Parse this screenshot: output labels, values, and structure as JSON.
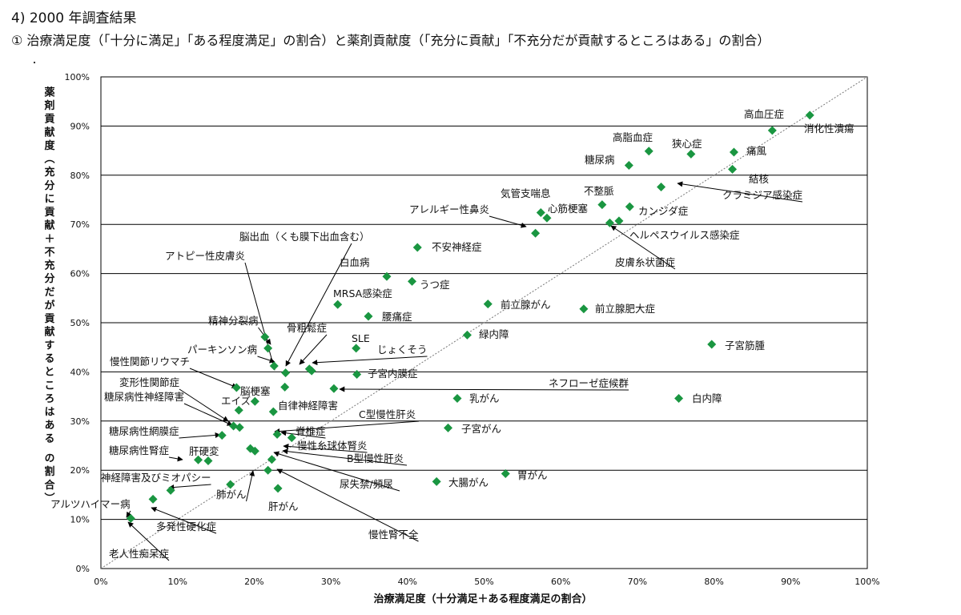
{
  "heading": "4) 2000 年調査結果",
  "subheading": "① 治療満足度（「十分に満足」「ある程度満足」の割合）と薬剤貢献度（「充分に貢献」「不充分だが貢献するところはある」の割合）",
  "stray_mark": "・",
  "chart_data": {
    "type": "scatter",
    "xlabel": "治療満足度（十分満足＋ある程度満足の割合）",
    "ylabel": "薬剤貢献度（充分に貢献＋不充分だが貢献するところはある の割合）",
    "xlim": [
      0,
      100
    ],
    "ylim": [
      0,
      100
    ],
    "x_ticks": [
      "0%",
      "10%",
      "20%",
      "30%",
      "40%",
      "50%",
      "60%",
      "70%",
      "80%",
      "90%",
      "100%"
    ],
    "y_ticks": [
      "0%",
      "10%",
      "20%",
      "30%",
      "40%",
      "50%",
      "60%",
      "70%",
      "80%",
      "90%",
      "100%"
    ],
    "grid": "horizontal",
    "diagonal_reference_line": true,
    "marker_color": "#1a9641",
    "points": [
      {
        "label": "高血圧症",
        "x": 92.5,
        "y": 92.2
      },
      {
        "label": "消化性潰瘍",
        "x": 87.6,
        "y": 89.1
      },
      {
        "label": "高脂血症",
        "x": 71.5,
        "y": 84.9
      },
      {
        "label": "狭心症",
        "x": 77.0,
        "y": 84.3
      },
      {
        "label": "痛風",
        "x": 82.6,
        "y": 84.7
      },
      {
        "label": "糖尿病",
        "x": 68.9,
        "y": 82.0
      },
      {
        "label": "結核",
        "x": 82.4,
        "y": 81.2
      },
      {
        "label": "クラミジア感染症",
        "x": 73.1,
        "y": 77.6
      },
      {
        "label": "気管支喘息",
        "x": 57.4,
        "y": 72.4
      },
      {
        "label": "心筋梗塞",
        "x": 58.2,
        "y": 71.3
      },
      {
        "label": "不整脈",
        "x": 65.4,
        "y": 74.0
      },
      {
        "label": "カンジダ症",
        "x": 69.0,
        "y": 73.6
      },
      {
        "label": "アレルギー性鼻炎",
        "x": 56.7,
        "y": 68.2
      },
      {
        "label": "ヘルペスウイルス感染症",
        "x": 66.4,
        "y": 70.3
      },
      {
        "label": "皮膚糸状菌症",
        "x": 67.6,
        "y": 70.7
      },
      {
        "label": "不安神経症",
        "x": 41.3,
        "y": 65.3
      },
      {
        "label": "白血病",
        "x": 37.3,
        "y": 59.4
      },
      {
        "label": "うつ症",
        "x": 40.6,
        "y": 58.4
      },
      {
        "label": "MRSA感染症",
        "x": 30.9,
        "y": 53.7
      },
      {
        "label": "腰痛症",
        "x": 34.9,
        "y": 51.3
      },
      {
        "label": "前立腺がん",
        "x": 50.5,
        "y": 53.8
      },
      {
        "label": "前立腺肥大症",
        "x": 63.0,
        "y": 52.8
      },
      {
        "label": "緑内障",
        "x": 47.8,
        "y": 47.5
      },
      {
        "label": "子宮筋腫",
        "x": 79.7,
        "y": 45.6
      },
      {
        "label": "精神分裂病",
        "x": 21.4,
        "y": 47.1
      },
      {
        "label": "骨粗鬆症",
        "x": 21.8,
        "y": 44.8
      },
      {
        "label": "SLE",
        "x": 33.3,
        "y": 44.8
      },
      {
        "label": "パーキンソン病",
        "x": 22.6,
        "y": 41.2
      },
      {
        "label": "じょくそう",
        "x": 27.2,
        "y": 40.6
      },
      {
        "label": "アトピー性皮膚炎",
        "x": 24.1,
        "y": 39.8
      },
      {
        "label": "脳出血（くも膜下出血含む）",
        "x": 27.5,
        "y": 40.2
      },
      {
        "label": "子宮内膜症",
        "x": 33.4,
        "y": 39.5
      },
      {
        "label": "慢性関節リウマチ",
        "x": 17.7,
        "y": 36.8
      },
      {
        "label": "ネフローゼ症候群",
        "x": 30.4,
        "y": 36.6
      },
      {
        "label": "自律神経障害",
        "x": 24.0,
        "y": 36.9
      },
      {
        "label": "乳がん",
        "x": 46.5,
        "y": 34.6
      },
      {
        "label": "白内障",
        "x": 75.4,
        "y": 34.6
      },
      {
        "label": "脳梗塞",
        "x": 20.1,
        "y": 34.0
      },
      {
        "label": "エイズ",
        "x": 18.0,
        "y": 32.2
      },
      {
        "label": "変形性関節症",
        "x": 22.5,
        "y": 31.9
      },
      {
        "label": "糖尿病性神経障害",
        "x": 17.3,
        "y": 29.0
      },
      {
        "label": "C型慢性肝炎",
        "x": 18.1,
        "y": 28.7
      },
      {
        "label": "子宮がん",
        "x": 45.3,
        "y": 28.6
      },
      {
        "label": "糖尿病性網膜症",
        "x": 15.8,
        "y": 27.1
      },
      {
        "label": "脊椎症",
        "x": 23.0,
        "y": 27.3
      },
      {
        "label": "慢性糸球体腎炎",
        "x": 24.9,
        "y": 26.6
      },
      {
        "label": "B型慢性肝炎",
        "x": 19.5,
        "y": 24.4
      },
      {
        "label": "尿失禁/頻尿",
        "x": 20.1,
        "y": 23.9
      },
      {
        "label": "糖尿病性腎症",
        "x": 12.7,
        "y": 22.1
      },
      {
        "label": "肝硬変",
        "x": 14.0,
        "y": 21.9
      },
      {
        "label": "慢性腎不全",
        "x": 22.3,
        "y": 22.2
      },
      {
        "label": "肺がん",
        "x": 21.8,
        "y": 20.0
      },
      {
        "label": "胃がん",
        "x": 52.8,
        "y": 19.3
      },
      {
        "label": "大腸がん",
        "x": 43.8,
        "y": 17.7
      },
      {
        "label": "神経障害及びミオパシー",
        "x": 16.9,
        "y": 17.1
      },
      {
        "label": "肝がん",
        "x": 23.1,
        "y": 16.3
      },
      {
        "label": "アルツハイマー病",
        "x": 9.1,
        "y": 15.9
      },
      {
        "label": "多発性硬化症",
        "x": 6.8,
        "y": 14.1
      },
      {
        "label": "老人性痴呆症",
        "x": 3.9,
        "y": 10.2
      }
    ]
  }
}
